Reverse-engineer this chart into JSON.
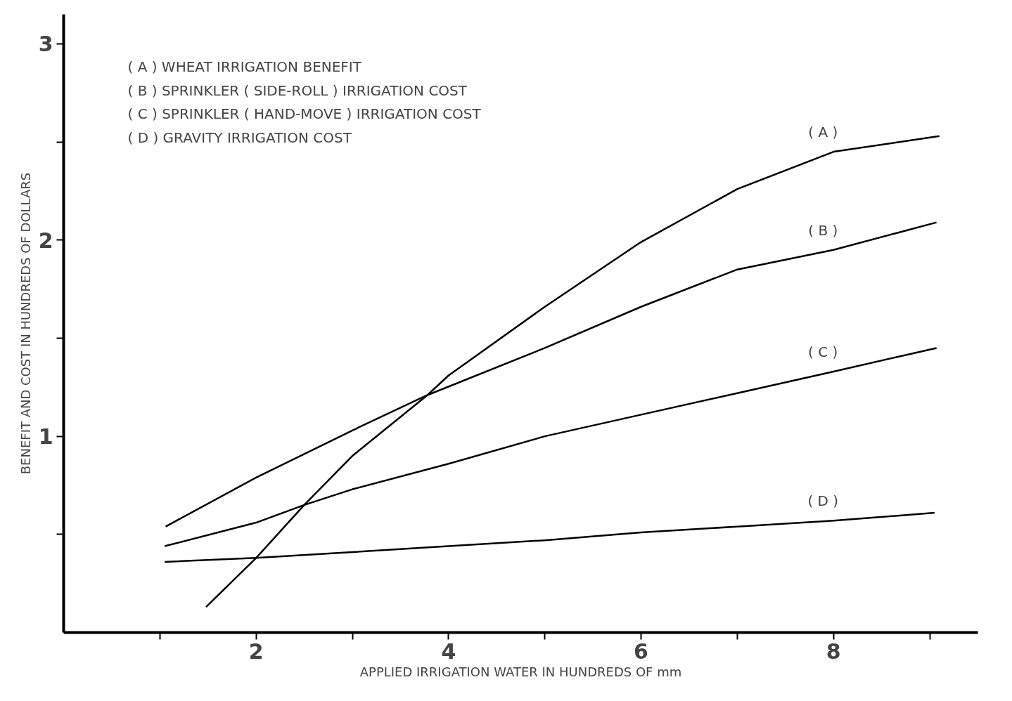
{
  "chart_data": {
    "type": "line",
    "xlabel": "APPLIED IRRIGATION WATER IN HUNDREDS OF mm",
    "ylabel": "BENEFIT AND COST IN HUNDREDS OF DOLLARS",
    "series": [
      {
        "name": "( A )",
        "color": "#000000",
        "x": [
          1.48,
          2,
          2.5,
          3,
          3.78,
          4,
          5,
          6,
          7,
          8,
          9.1
        ],
        "values": [
          0.13,
          0.38,
          0.65,
          0.9,
          1.21,
          1.31,
          1.66,
          1.99,
          2.26,
          2.45,
          2.53
        ]
      },
      {
        "name": "( B )",
        "color": "#000000",
        "x": [
          1.06,
          2,
          3,
          3.78,
          5,
          6,
          7,
          8,
          9.07
        ],
        "values": [
          0.54,
          0.79,
          1.03,
          1.21,
          1.45,
          1.66,
          1.85,
          1.95,
          2.09
        ]
      },
      {
        "name": "( C )",
        "color": "#000000",
        "x": [
          1.05,
          2,
          2.5,
          3,
          4,
          5,
          6,
          7,
          8,
          9.07
        ],
        "values": [
          0.44,
          0.56,
          0.65,
          0.73,
          0.86,
          1.0,
          1.11,
          1.22,
          1.33,
          1.45
        ]
      },
      {
        "name": "( D )",
        "color": "#000000",
        "x": [
          1.05,
          2,
          3,
          4,
          5,
          6,
          7,
          8,
          9.05
        ],
        "values": [
          0.36,
          0.38,
          0.41,
          0.44,
          0.47,
          0.51,
          0.54,
          0.57,
          0.61
        ]
      }
    ],
    "annotations": [
      "( A )  WHEAT IRRIGATION BENEFIT",
      "( B )  SPRINKLER ( SIDE-ROLL ) IRRIGATION COST",
      "( C )  SPRINKLER ( HAND-MOVE ) IRRIGATION COST",
      "( D )  GRAVITY IRRIGATION COST"
    ],
    "xlim": [
      0,
      9.5
    ],
    "ylim": [
      0,
      3.15
    ],
    "xticks": [
      {
        "value": 1,
        "label": null
      },
      2,
      {
        "value": 3,
        "label": null
      },
      4,
      {
        "value": 5,
        "label": null
      },
      6,
      {
        "value": 7,
        "label": null
      },
      8,
      {
        "value": 9,
        "label": null
      }
    ],
    "yticks": [
      {
        "value": 0.5,
        "label": null
      },
      1,
      {
        "value": 1.5,
        "label": null
      },
      2,
      {
        "value": 2.5,
        "label": null
      },
      3
    ],
    "grid": false,
    "marker": "none",
    "line_style": "solid"
  }
}
